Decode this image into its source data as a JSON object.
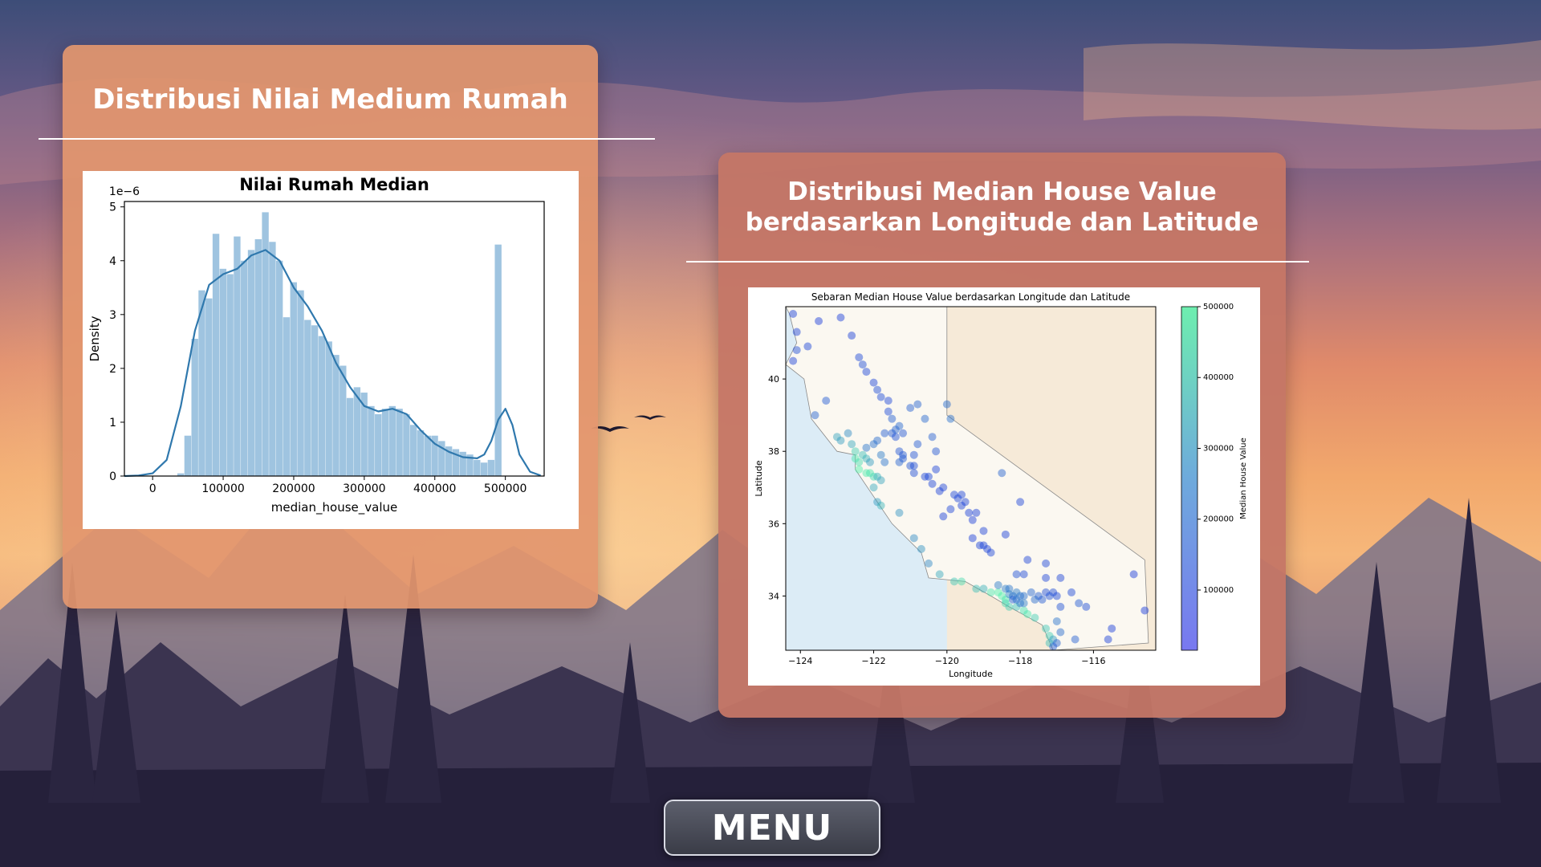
{
  "panels": {
    "left": {
      "title": "Distribusi Nilai Medium Rumah"
    },
    "right": {
      "title_line1": "Distribusi Median House Value",
      "title_line2": "berdasarkan Longitude dan Latitude"
    }
  },
  "menu": {
    "label": "MENU"
  },
  "colors": {
    "panel_left": "#e2966e",
    "panel_right": "#c47666",
    "hist_bar": "#9fc4e0",
    "kde_line": "#2f78ad",
    "scatter_low": "#0a1ee0",
    "scatter_high": "#46f0a8"
  },
  "chart_data": [
    {
      "type": "histogram",
      "title": "Nilai Rumah Median",
      "xlabel": "median_house_value",
      "ylabel": "Density",
      "y_multiplier_label": "1e−6",
      "xlim": [
        -40000,
        555000
      ],
      "ylim": [
        0,
        5.1
      ],
      "x_ticks": [
        0,
        100000,
        200000,
        300000,
        400000,
        500000
      ],
      "x_tick_labels": [
        "0",
        "100000",
        "200000",
        "300000",
        "400000",
        "500000"
      ],
      "y_ticks": [
        0,
        1,
        2,
        3,
        4,
        5
      ],
      "y_tick_labels": [
        "0",
        "1",
        "2",
        "3",
        "4",
        "5"
      ],
      "bin_edges_start": 15000,
      "bin_width": 10000,
      "bin_densities": [
        0.0,
        0.0,
        0.05,
        0.75,
        2.55,
        3.45,
        3.3,
        4.5,
        3.85,
        3.75,
        4.45,
        4.0,
        4.2,
        4.4,
        4.9,
        4.35,
        4.0,
        2.95,
        3.6,
        3.45,
        2.9,
        2.8,
        2.6,
        2.5,
        2.25,
        2.05,
        1.45,
        1.65,
        1.55,
        1.3,
        1.15,
        1.25,
        1.3,
        1.25,
        1.15,
        0.95,
        0.85,
        0.75,
        0.75,
        0.65,
        0.55,
        0.5,
        0.45,
        0.4,
        0.3,
        0.25,
        0.3,
        4.3
      ],
      "kde_x": [
        -40000,
        -20000,
        0,
        20000,
        40000,
        60000,
        80000,
        100000,
        120000,
        140000,
        160000,
        180000,
        200000,
        220000,
        240000,
        260000,
        280000,
        300000,
        320000,
        340000,
        360000,
        380000,
        400000,
        420000,
        440000,
        460000,
        470000,
        480000,
        490000,
        500000,
        510000,
        520000,
        535000,
        550000
      ],
      "kde_y": [
        0,
        0.01,
        0.05,
        0.3,
        1.3,
        2.7,
        3.55,
        3.75,
        3.85,
        4.1,
        4.2,
        4.0,
        3.5,
        3.15,
        2.7,
        2.1,
        1.65,
        1.3,
        1.2,
        1.25,
        1.15,
        0.85,
        0.6,
        0.45,
        0.35,
        0.33,
        0.4,
        0.65,
        1.05,
        1.25,
        0.95,
        0.4,
        0.08,
        0.01
      ]
    },
    {
      "type": "scatter",
      "title": "Sebaran Median House Value berdasarkan Longitude dan Latitude",
      "xlabel": "Longitude",
      "ylabel": "Latitude",
      "colorbar_label": "Median House Value",
      "xlim": [
        -124.4,
        -114.3
      ],
      "ylim": [
        32.5,
        42.0
      ],
      "x_ticks": [
        -124,
        -122,
        -120,
        -118,
        -116
      ],
      "x_tick_labels": [
        "−124",
        "−122",
        "−120",
        "−118",
        "−116"
      ],
      "y_ticks": [
        34,
        36,
        38,
        40
      ],
      "y_tick_labels": [
        "34",
        "36",
        "38",
        "40"
      ],
      "colorbar_range": [
        15000,
        500000
      ],
      "colorbar_ticks": [
        100000,
        200000,
        300000,
        400000,
        500000
      ],
      "colorbar_tick_labels": [
        "100000",
        "200000",
        "300000",
        "400000",
        "500000"
      ],
      "points": [
        [
          -124.2,
          41.8,
          80000
        ],
        [
          -124.1,
          41.3,
          90000
        ],
        [
          -124.1,
          40.8,
          110000
        ],
        [
          -124.2,
          40.5,
          85000
        ],
        [
          -123.8,
          40.9,
          95000
        ],
        [
          -123.5,
          41.6,
          70000
        ],
        [
          -122.9,
          41.7,
          75000
        ],
        [
          -122.6,
          41.2,
          80000
        ],
        [
          -122.4,
          40.6,
          100000
        ],
        [
          -122.3,
          40.4,
          110000
        ],
        [
          -122.2,
          40.2,
          95000
        ],
        [
          -122.0,
          39.9,
          90000
        ],
        [
          -121.9,
          39.7,
          110000
        ],
        [
          -121.8,
          39.5,
          105000
        ],
        [
          -121.6,
          39.4,
          95000
        ],
        [
          -121.6,
          39.1,
          105000
        ],
        [
          -121.5,
          38.9,
          150000
        ],
        [
          -121.4,
          38.6,
          160000
        ],
        [
          -121.3,
          38.7,
          170000
        ],
        [
          -121.2,
          38.5,
          130000
        ],
        [
          -121.5,
          38.5,
          140000
        ],
        [
          -121.0,
          39.2,
          150000
        ],
        [
          -120.8,
          39.3,
          160000
        ],
        [
          -120.6,
          38.9,
          170000
        ],
        [
          -120.4,
          38.4,
          150000
        ],
        [
          -120.3,
          38.0,
          130000
        ],
        [
          -120.9,
          37.9,
          120000
        ],
        [
          -121.2,
          37.9,
          140000
        ],
        [
          -121.0,
          37.6,
          130000
        ],
        [
          -120.9,
          37.4,
          110000
        ],
        [
          -120.6,
          37.3,
          95000
        ],
        [
          -120.4,
          37.1,
          90000
        ],
        [
          -120.2,
          36.9,
          85000
        ],
        [
          -119.8,
          36.8,
          95000
        ],
        [
          -119.7,
          36.7,
          90000
        ],
        [
          -119.6,
          36.5,
          85000
        ],
        [
          -119.4,
          36.3,
          80000
        ],
        [
          -119.3,
          36.1,
          75000
        ],
        [
          -119.0,
          35.8,
          85000
        ],
        [
          -119.0,
          35.4,
          90000
        ],
        [
          -118.8,
          35.2,
          95000
        ],
        [
          -119.9,
          36.4,
          90000
        ],
        [
          -120.1,
          36.2,
          80000
        ],
        [
          -118.4,
          35.7,
          80000
        ],
        [
          -118.0,
          36.6,
          90000
        ],
        [
          -117.8,
          35.0,
          90000
        ],
        [
          -117.3,
          34.9,
          95000
        ],
        [
          -116.9,
          34.5,
          90000
        ],
        [
          -116.6,
          34.1,
          100000
        ],
        [
          -116.4,
          33.8,
          140000
        ],
        [
          -116.2,
          33.7,
          110000
        ],
        [
          -115.6,
          32.8,
          80000
        ],
        [
          -115.5,
          33.1,
          75000
        ],
        [
          -114.9,
          34.6,
          70000
        ],
        [
          -114.6,
          33.6,
          65000
        ],
        [
          -120.0,
          39.3,
          180000
        ],
        [
          -119.9,
          38.9,
          190000
        ],
        [
          -118.5,
          37.4,
          160000
        ],
        [
          -123.3,
          39.4,
          140000
        ],
        [
          -123.6,
          39.0,
          160000
        ],
        [
          -123.0,
          38.4,
          320000
        ],
        [
          -122.9,
          38.3,
          300000
        ],
        [
          -122.7,
          38.5,
          260000
        ],
        [
          -122.6,
          38.2,
          330000
        ],
        [
          -122.5,
          38.0,
          420000
        ],
        [
          -122.5,
          37.8,
          480000
        ],
        [
          -122.4,
          37.7,
          450000
        ],
        [
          -122.3,
          37.9,
          380000
        ],
        [
          -122.2,
          37.8,
          350000
        ],
        [
          -122.1,
          37.7,
          300000
        ],
        [
          -122.4,
          37.5,
          500000
        ],
        [
          -122.2,
          37.4,
          490000
        ],
        [
          -122.1,
          37.4,
          470000
        ],
        [
          -122.0,
          37.3,
          440000
        ],
        [
          -121.9,
          37.3,
          350000
        ],
        [
          -121.8,
          37.2,
          320000
        ],
        [
          -122.0,
          37.0,
          330000
        ],
        [
          -121.9,
          36.6,
          300000
        ],
        [
          -121.8,
          36.5,
          360000
        ],
        [
          -121.3,
          36.3,
          280000
        ],
        [
          -120.9,
          35.6,
          260000
        ],
        [
          -120.7,
          35.3,
          280000
        ],
        [
          -120.5,
          34.9,
          250000
        ],
        [
          -120.2,
          34.6,
          330000
        ],
        [
          -119.8,
          34.4,
          400000
        ],
        [
          -119.6,
          34.4,
          450000
        ],
        [
          -119.2,
          34.2,
          380000
        ],
        [
          -119.0,
          34.2,
          350000
        ],
        [
          -118.8,
          34.1,
          480000
        ],
        [
          -118.6,
          34.1,
          500000
        ],
        [
          -118.5,
          34.0,
          500000
        ],
        [
          -118.4,
          33.9,
          470000
        ],
        [
          -118.4,
          33.8,
          440000
        ],
        [
          -118.3,
          33.7,
          420000
        ],
        [
          -118.1,
          33.7,
          390000
        ],
        [
          -117.9,
          33.6,
          460000
        ],
        [
          -117.8,
          33.5,
          480000
        ],
        [
          -117.6,
          33.4,
          420000
        ],
        [
          -117.3,
          33.1,
          400000
        ],
        [
          -117.2,
          32.9,
          420000
        ],
        [
          -117.2,
          32.7,
          380000
        ],
        [
          -117.1,
          32.8,
          300000
        ],
        [
          -118.3,
          34.05,
          250000
        ],
        [
          -118.2,
          34.0,
          180000
        ],
        [
          -118.2,
          33.9,
          150000
        ],
        [
          -118.1,
          34.1,
          220000
        ],
        [
          -118.0,
          34.0,
          200000
        ],
        [
          -117.9,
          34.0,
          190000
        ],
        [
          -117.7,
          34.1,
          170000
        ],
        [
          -117.5,
          34.0,
          150000
        ],
        [
          -117.3,
          34.1,
          110000
        ],
        [
          -117.2,
          34.0,
          120000
        ],
        [
          -117.1,
          34.1,
          110000
        ],
        [
          -117.4,
          33.9,
          140000
        ],
        [
          -117.6,
          33.9,
          180000
        ],
        [
          -117.9,
          33.8,
          230000
        ],
        [
          -118.0,
          33.8,
          210000
        ],
        [
          -118.1,
          33.9,
          200000
        ],
        [
          -118.4,
          34.2,
          230000
        ],
        [
          -118.3,
          34.2,
          210000
        ],
        [
          -118.6,
          34.3,
          220000
        ],
        [
          -118.1,
          34.6,
          120000
        ],
        [
          -117.9,
          34.6,
          100000
        ],
        [
          -117.3,
          34.5,
          90000
        ],
        [
          -117.0,
          34.0,
          100000
        ],
        [
          -116.9,
          33.7,
          120000
        ],
        [
          -116.9,
          33.0,
          180000
        ],
        [
          -117.0,
          32.7,
          160000
        ],
        [
          -117.1,
          32.6,
          140000
        ],
        [
          -116.5,
          32.8,
          150000
        ],
        [
          -117.0,
          33.3,
          200000
        ],
        [
          -121.4,
          38.4,
          120000
        ],
        [
          -121.3,
          38.0,
          130000
        ],
        [
          -121.2,
          37.8,
          140000
        ],
        [
          -120.9,
          37.6,
          110000
        ],
        [
          -120.5,
          37.3,
          95000
        ],
        [
          -121.7,
          38.5,
          150000
        ],
        [
          -121.9,
          38.3,
          180000
        ],
        [
          -122.0,
          38.2,
          190000
        ],
        [
          -122.2,
          38.1,
          210000
        ],
        [
          -121.8,
          37.9,
          220000
        ],
        [
          -121.7,
          37.7,
          200000
        ],
        [
          -121.3,
          37.7,
          160000
        ],
        [
          -120.8,
          38.2,
          140000
        ],
        [
          -120.3,
          37.5,
          90000
        ],
        [
          -120.1,
          37.0,
          85000
        ],
        [
          -119.6,
          36.8,
          90000
        ],
        [
          -119.5,
          36.6,
          85000
        ],
        [
          -119.2,
          36.3,
          80000
        ],
        [
          -119.1,
          35.4,
          90000
        ],
        [
          -118.9,
          35.3,
          85000
        ],
        [
          -119.3,
          35.6,
          75000
        ]
      ]
    }
  ]
}
